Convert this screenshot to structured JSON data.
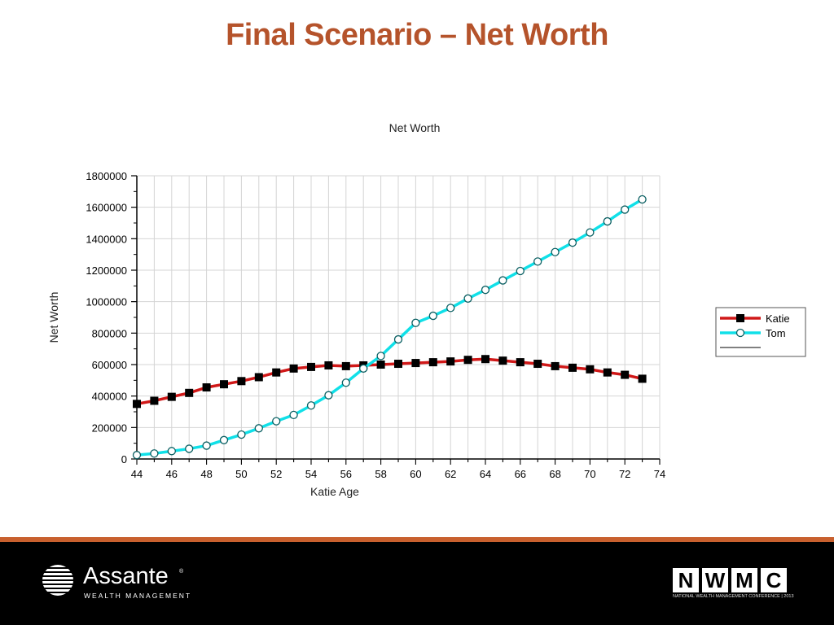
{
  "slide": {
    "title": "Final Scenario – Net Worth"
  },
  "chart_data": {
    "type": "line",
    "title": "Net Worth",
    "xlabel": "Katie Age",
    "ylabel": "Net Worth",
    "xlim": [
      44,
      74
    ],
    "ylim": [
      0,
      1800000
    ],
    "x_ticks": [
      44,
      46,
      48,
      50,
      52,
      54,
      56,
      58,
      60,
      62,
      64,
      66,
      68,
      70,
      72,
      74
    ],
    "y_ticks": [
      0,
      200000,
      400000,
      600000,
      800000,
      1000000,
      1200000,
      1400000,
      1600000,
      1800000
    ],
    "grid": true,
    "legend_position": "right",
    "x": [
      44,
      45,
      46,
      47,
      48,
      49,
      50,
      51,
      52,
      53,
      54,
      55,
      56,
      57,
      58,
      59,
      60,
      61,
      62,
      63,
      64,
      65,
      66,
      67,
      68,
      69,
      70,
      71,
      72,
      73
    ],
    "series": [
      {
        "name": "Katie",
        "line_color": "#d01818",
        "marker": "square",
        "marker_color": "#000000",
        "values": [
          350000,
          370000,
          395000,
          420000,
          455000,
          475000,
          495000,
          520000,
          550000,
          575000,
          585000,
          595000,
          590000,
          595000,
          600000,
          605000,
          610000,
          615000,
          620000,
          630000,
          635000,
          625000,
          615000,
          605000,
          590000,
          580000,
          570000,
          550000,
          535000,
          510000
        ]
      },
      {
        "name": "Tom",
        "line_color": "#10e0e8",
        "marker": "circle",
        "marker_color": "#0a5f62",
        "values": [
          25000,
          35000,
          50000,
          65000,
          85000,
          120000,
          155000,
          195000,
          240000,
          280000,
          340000,
          405000,
          485000,
          575000,
          655000,
          760000,
          865000,
          910000,
          960000,
          1020000,
          1075000,
          1135000,
          1195000,
          1255000,
          1315000,
          1375000,
          1440000,
          1510000,
          1585000,
          1650000
        ]
      }
    ]
  },
  "footer": {
    "brand_name": "Assante",
    "brand_mark": "®",
    "brand_sub": "WEALTH MANAGEMENT",
    "conf_letters": [
      "N",
      "W",
      "M",
      "C"
    ],
    "conf_sub": "NATIONAL WEALTH MANAGEMENT CONFERENCE | 2013"
  }
}
